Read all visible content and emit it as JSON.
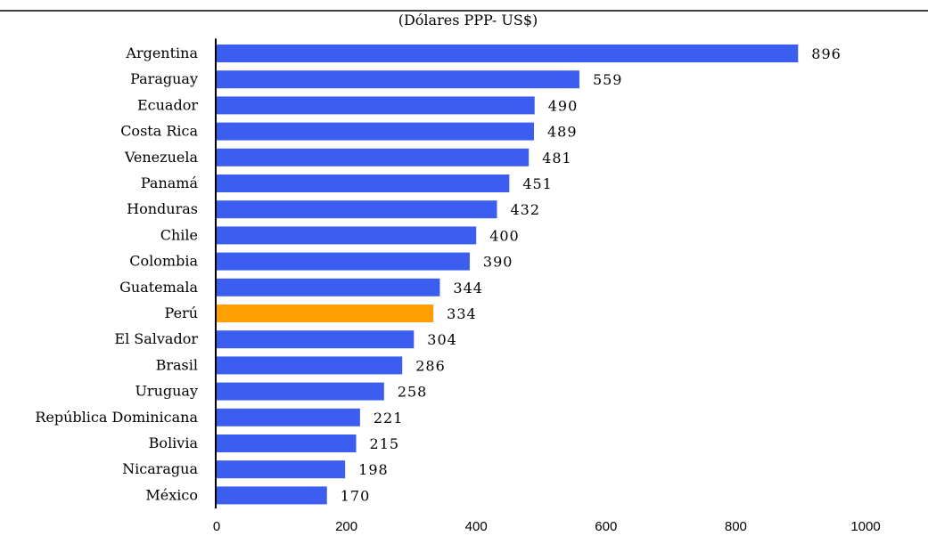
{
  "chart_data": {
    "type": "bar",
    "orientation": "horizontal",
    "subtitle": "(Dólares PPP- US$)",
    "categories": [
      "Argentina",
      "Paraguay",
      "Ecuador",
      "Costa Rica",
      "Venezuela",
      "Panamá",
      "Honduras",
      "Chile",
      "Colombia",
      "Guatemala",
      "Perú",
      "El Salvador",
      "Brasil",
      "Uruguay",
      "República Dominicana",
      "Bolivia",
      "Nicaragua",
      "México"
    ],
    "values": [
      896,
      559,
      490,
      489,
      481,
      451,
      432,
      400,
      390,
      344,
      334,
      304,
      286,
      258,
      221,
      215,
      198,
      170
    ],
    "xlim": [
      0,
      1000
    ],
    "xticks": [
      0,
      200,
      400,
      600,
      800,
      1000
    ],
    "highlight": "Perú",
    "colors": {
      "bar": "#3b5ef0",
      "highlight": "#ff9f00"
    },
    "grid": false
  }
}
